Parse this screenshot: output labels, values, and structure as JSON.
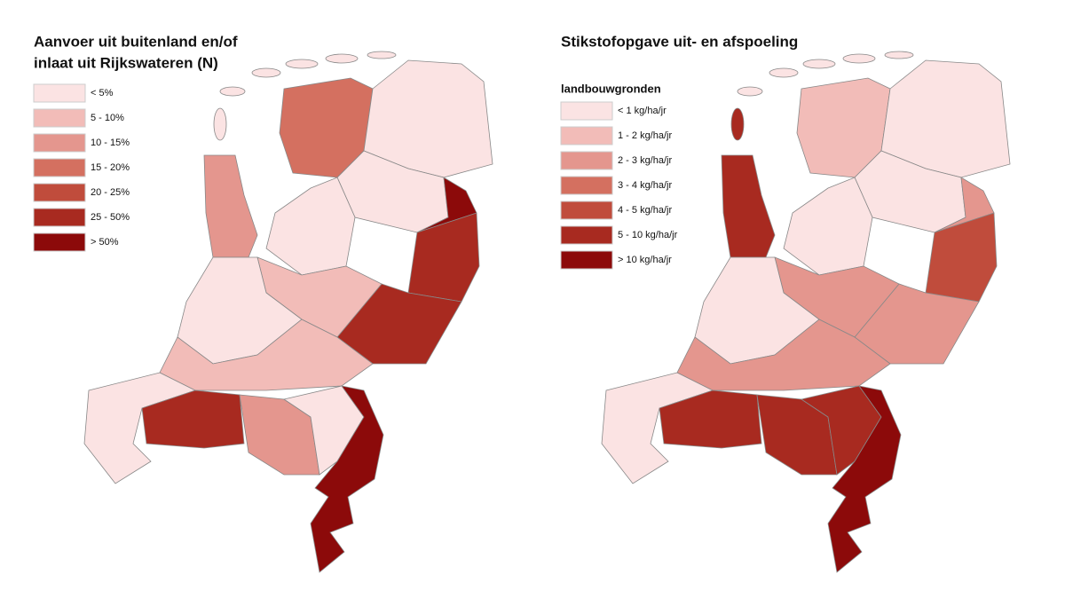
{
  "maps": [
    {
      "title_lines": [
        "Aanvoer uit buitenland en/of",
        "inlaat uit Rijkswateren (N)"
      ],
      "legend": [
        {
          "label": "< 5%",
          "color": "#fbe3e3"
        },
        {
          "label": "5 - 10%",
          "color": "#f2bcb8"
        },
        {
          "label": "10 - 15%",
          "color": "#e4968e"
        },
        {
          "label": "15 - 20%",
          "color": "#d47060"
        },
        {
          "label": "20 - 25%",
          "color": "#c04c3c"
        },
        {
          "label": "25 - 50%",
          "color": "#a82a20"
        },
        {
          "label": "> 50%",
          "color": "#8c0a0a"
        }
      ]
    },
    {
      "title": "Stikstofopgave uit- en afspoeling",
      "legend_title": "landbouwgronden",
      "legend": [
        {
          "label": "< 1 kg/ha/jr",
          "color": "#fbe3e3"
        },
        {
          "label": "1 - 2 kg/ha/jr",
          "color": "#f2bcb8"
        },
        {
          "label": "2 - 3 kg/ha/jr",
          "color": "#e4968e"
        },
        {
          "label": "3 - 4 kg/ha/jr",
          "color": "#d47060"
        },
        {
          "label": "4 - 5 kg/ha/jr",
          "color": "#c04c3c"
        },
        {
          "label": "5 - 10 kg/ha/jr",
          "color": "#a82a20"
        },
        {
          "label": "> 10 kg/ha/jr",
          "color": "#8c0a0a"
        }
      ]
    }
  ]
}
